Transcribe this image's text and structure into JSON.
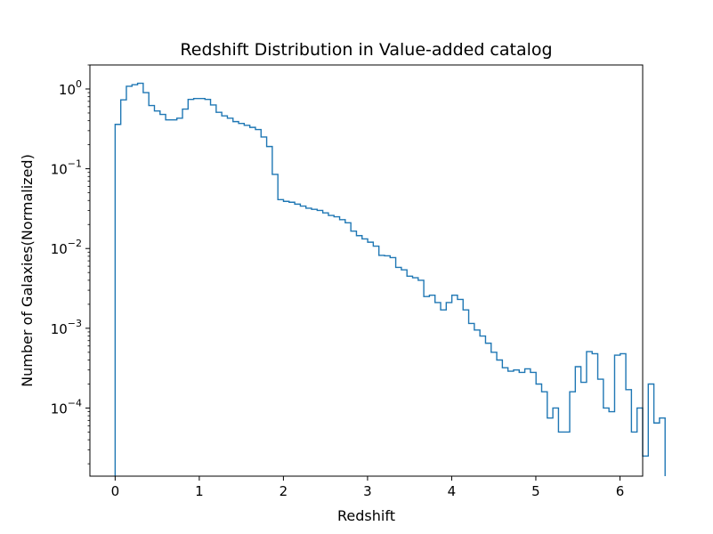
{
  "chart_data": {
    "type": "histogram",
    "title": "Redshift Distribution in Value-added catalog",
    "xlabel": "Redshift",
    "ylabel": "Number of Galaxies(Normalized)",
    "xlim": [
      -0.3,
      6.27
    ],
    "ylim": [
      1.4e-05,
      2.0
    ],
    "yscale": "log",
    "grid": false,
    "histtype": "step",
    "line_color": "#1f77b4",
    "x_ticks": [
      {
        "value": 0,
        "label": "0"
      },
      {
        "value": 1,
        "label": "1"
      },
      {
        "value": 2,
        "label": "2"
      },
      {
        "value": 3,
        "label": "3"
      },
      {
        "value": 4,
        "label": "4"
      },
      {
        "value": 5,
        "label": "5"
      },
      {
        "value": 6,
        "label": "6"
      }
    ],
    "y_ticks": [
      {
        "value": 1,
        "base": "10",
        "exp": "0"
      },
      {
        "value": 0.1,
        "base": "10",
        "exp": "−1"
      },
      {
        "value": 0.01,
        "base": "10",
        "exp": "−2"
      },
      {
        "value": 0.001,
        "base": "10",
        "exp": "−3"
      },
      {
        "value": 0.0001,
        "base": "10",
        "exp": "−4"
      }
    ],
    "bin_start": 0,
    "bin_width": 0.0667,
    "values": [
      0.36,
      0.73,
      1.08,
      1.13,
      1.18,
      0.9,
      0.62,
      0.53,
      0.48,
      0.41,
      0.41,
      0.43,
      0.56,
      0.74,
      0.76,
      0.76,
      0.74,
      0.63,
      0.51,
      0.46,
      0.43,
      0.39,
      0.37,
      0.35,
      0.33,
      0.31,
      0.25,
      0.19,
      0.085,
      0.041,
      0.039,
      0.038,
      0.036,
      0.034,
      0.032,
      0.031,
      0.03,
      0.028,
      0.026,
      0.025,
      0.023,
      0.021,
      0.0165,
      0.0145,
      0.0132,
      0.012,
      0.0107,
      0.0082,
      0.0081,
      0.0077,
      0.0058,
      0.0054,
      0.0045,
      0.0043,
      0.004,
      0.0025,
      0.0026,
      0.0021,
      0.0017,
      0.0021,
      0.0026,
      0.0023,
      0.0017,
      0.00115,
      0.00095,
      0.0008,
      0.00065,
      0.0005,
      0.0004,
      0.00032,
      0.00029,
      0.0003,
      0.00028,
      0.00031,
      0.00028,
      0.0002,
      0.00016,
      7.5e-05,
      0.0001,
      5e-05,
      5e-05,
      0.00016,
      0.00033,
      0.00021,
      0.00051,
      0.00048,
      0.00023,
      0.0001,
      9e-05,
      0.00046,
      0.00048,
      0.00017,
      5e-05,
      0.0001,
      2.5e-05,
      0.0002,
      6.5e-05,
      7.5e-05
    ]
  }
}
